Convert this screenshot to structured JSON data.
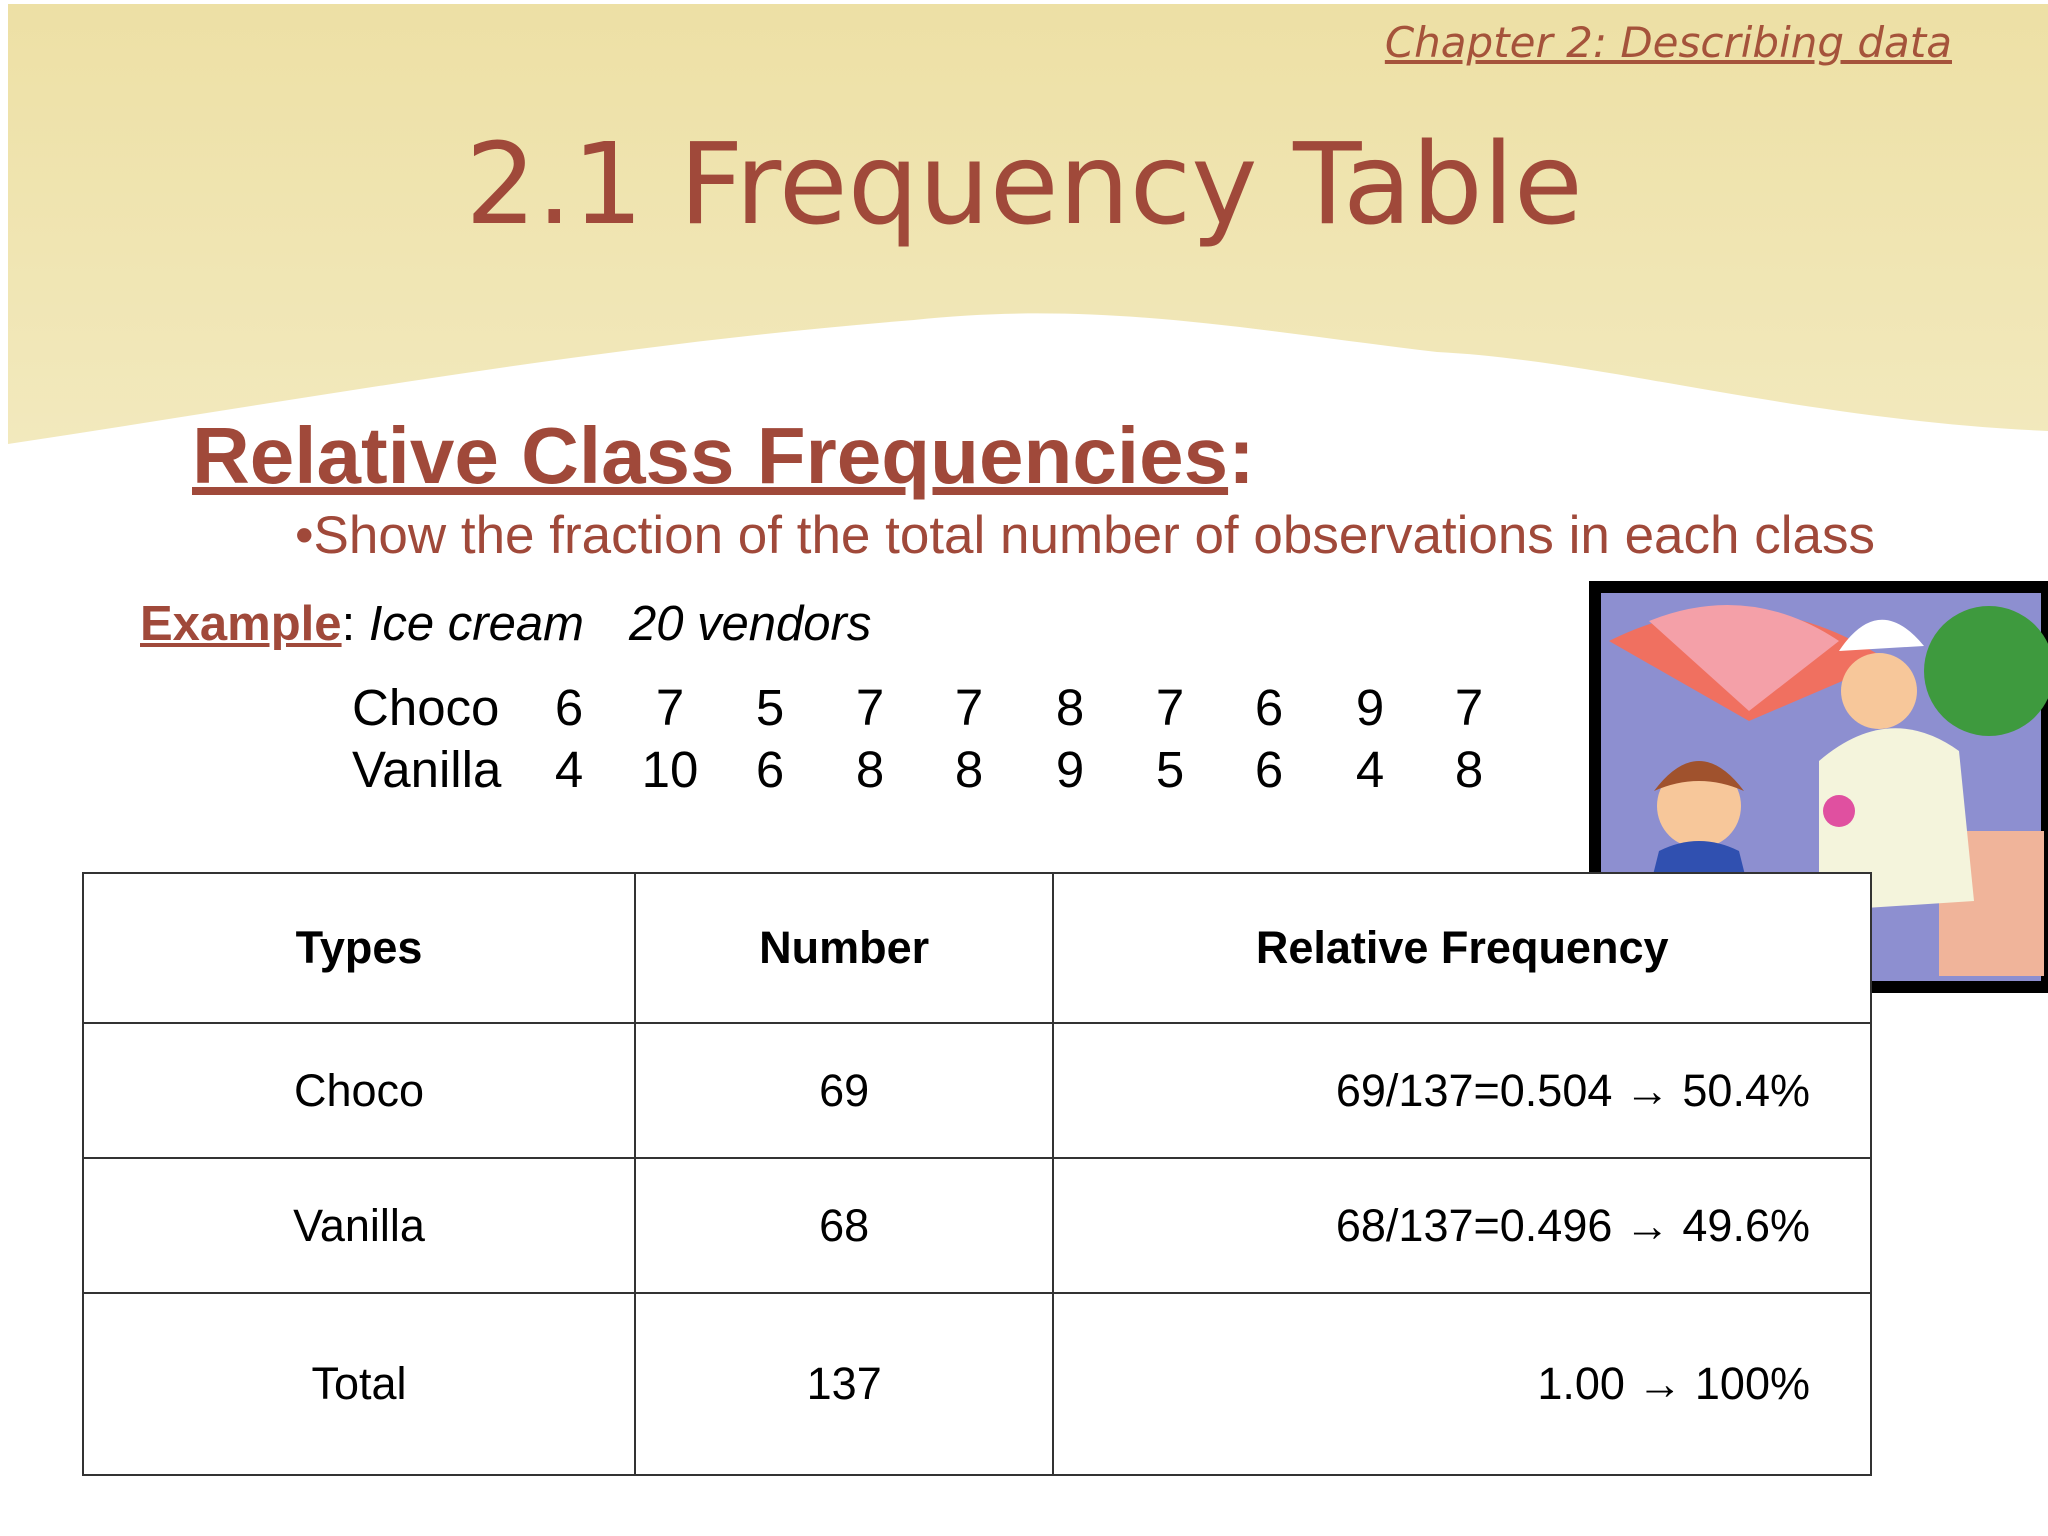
{
  "header": {
    "chapter": "Chapter 2: Describing data",
    "title": "2.1 Frequency Table"
  },
  "section": {
    "heading": "Relative Class Frequencies",
    "heading_punct": ":",
    "bullet": "•Show the fraction of the total number of observations in each class"
  },
  "example": {
    "label": "Example",
    "separator": ":",
    "item": "Ice cream",
    "count": "20 vendors",
    "rows": [
      {
        "name": "Choco",
        "values": [
          6,
          7,
          5,
          7,
          7,
          8,
          7,
          6,
          9,
          7
        ]
      },
      {
        "name": "Vanilla",
        "values": [
          4,
          10,
          6,
          8,
          8,
          9,
          5,
          6,
          4,
          8
        ]
      }
    ]
  },
  "table": {
    "header": [
      "Types",
      "Number",
      "Relative Frequency"
    ],
    "rows": [
      [
        "Choco",
        69,
        "69/137=0.504 → 50.4%"
      ],
      [
        "Vanilla",
        68,
        "68/137=0.496 → 49.6%"
      ],
      [
        "Total",
        137,
        "1.00 → 100%"
      ]
    ]
  }
}
